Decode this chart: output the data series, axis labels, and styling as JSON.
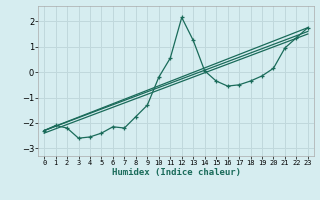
{
  "background_color": "#d6edf0",
  "grid_color": "#c0d8dc",
  "line_color": "#1a6b5a",
  "xlabel": "Humidex (Indice chaleur)",
  "xlim": [
    -0.5,
    23.5
  ],
  "ylim": [
    -3.3,
    2.6
  ],
  "yticks": [
    -3,
    -2,
    -1,
    0,
    1,
    2
  ],
  "xticks": [
    0,
    1,
    2,
    3,
    4,
    5,
    6,
    7,
    8,
    9,
    10,
    11,
    12,
    13,
    14,
    15,
    16,
    17,
    18,
    19,
    20,
    21,
    22,
    23
  ],
  "line1_x": [
    0,
    1,
    2,
    3,
    4,
    5,
    6,
    7,
    8,
    9,
    10,
    11,
    12,
    13,
    14,
    15,
    16,
    17,
    18,
    19,
    20,
    21,
    22,
    23
  ],
  "line1_y": [
    -2.3,
    -2.1,
    -2.2,
    -2.6,
    -2.55,
    -2.4,
    -2.15,
    -2.2,
    -1.75,
    -1.3,
    -0.2,
    0.55,
    2.15,
    1.25,
    0.05,
    -0.35,
    -0.55,
    -0.5,
    -0.35,
    -0.15,
    0.15,
    0.95,
    1.35,
    1.75
  ],
  "line2_x": [
    0,
    23
  ],
  "line2_y": [
    -2.3,
    1.75
  ],
  "line3_x": [
    0,
    23
  ],
  "line3_y": [
    -2.3,
    1.6
  ],
  "line4_x": [
    0,
    23
  ],
  "line4_y": [
    -2.4,
    1.5
  ],
  "figsize": [
    3.2,
    2.0
  ],
  "dpi": 100
}
